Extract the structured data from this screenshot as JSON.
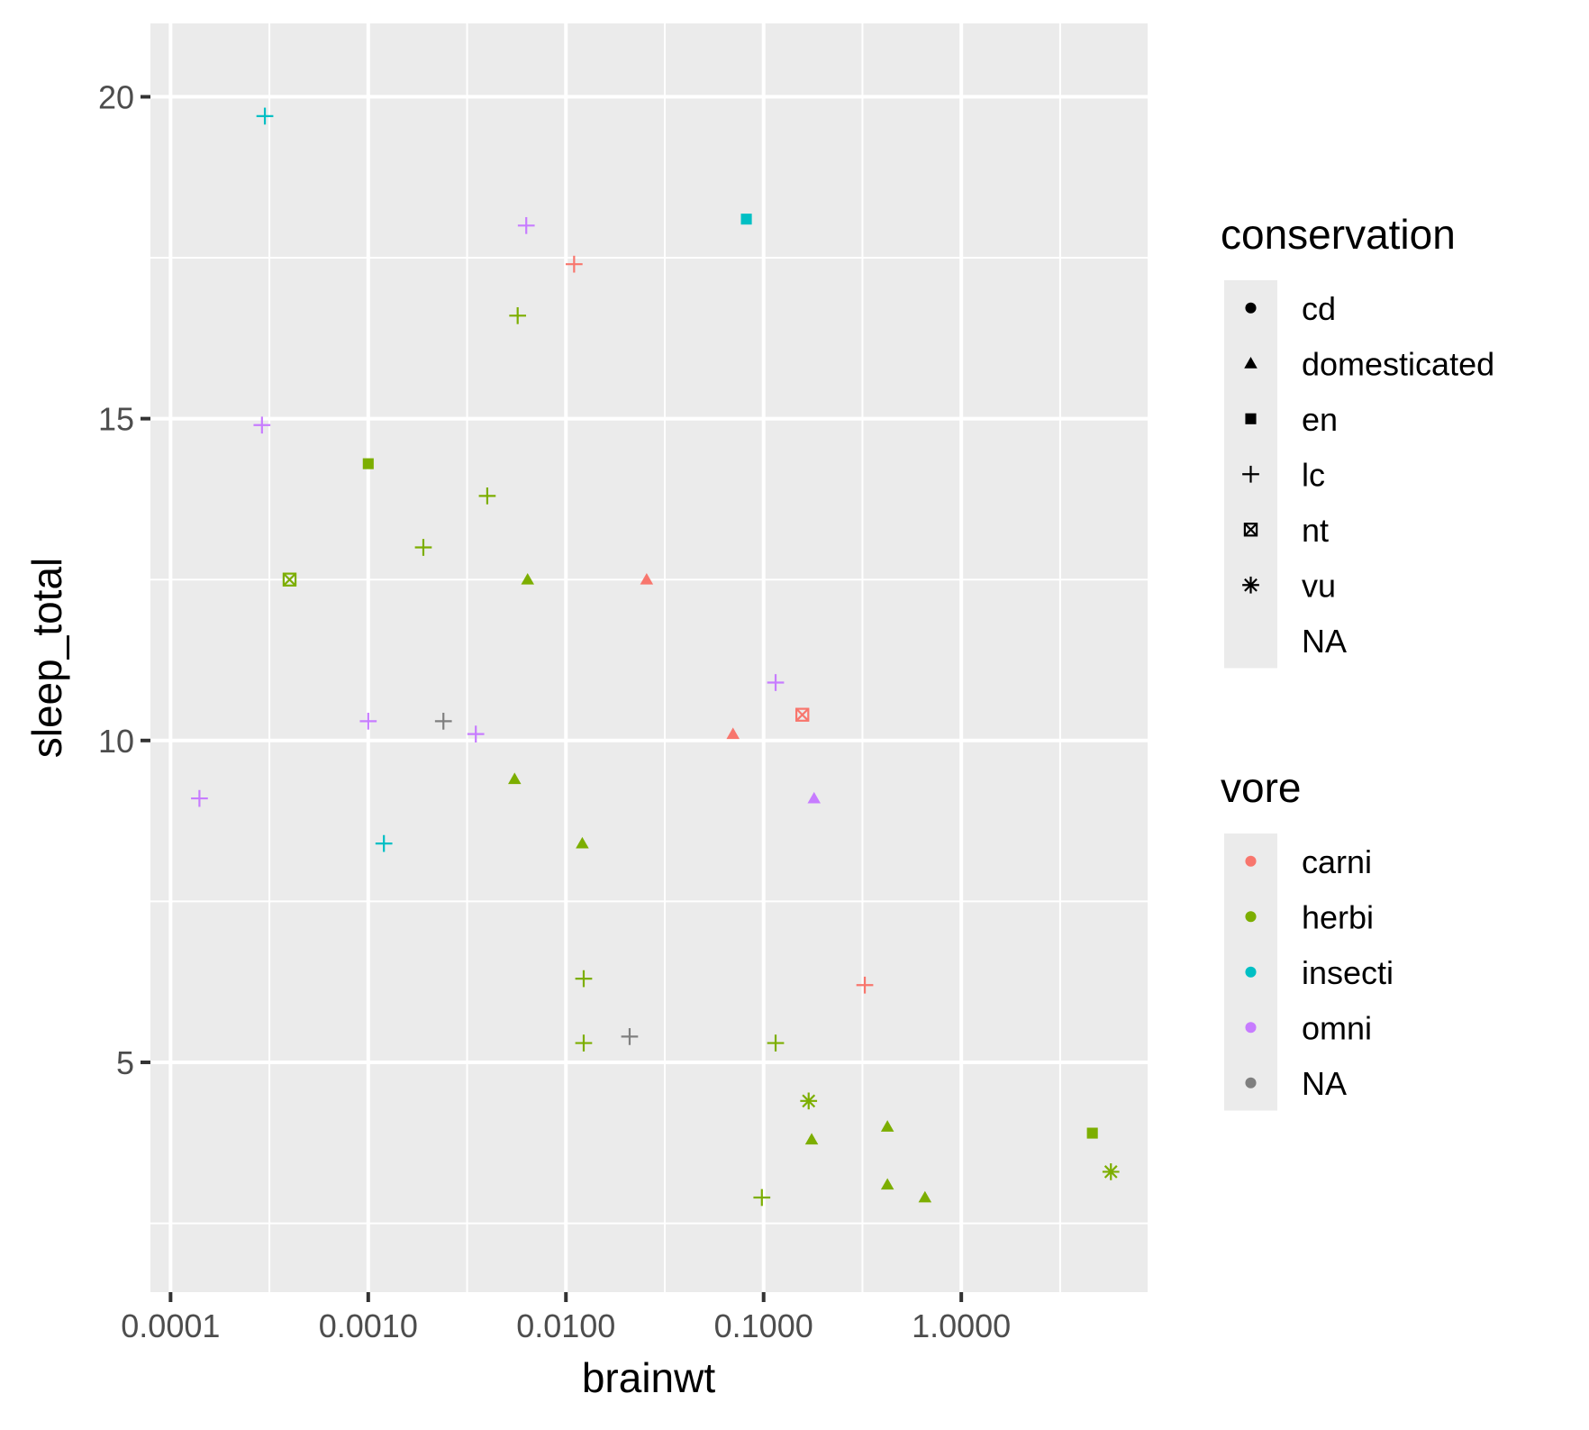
{
  "chart_data": {
    "type": "scatter",
    "title": "",
    "xlabel": "brainwt",
    "ylabel": "sleep_total",
    "x_scale": "log10",
    "xlim": [
      7.91e-05,
      8.76
    ],
    "ylim": [
      1.43,
      21.14
    ],
    "x_ticks": [
      0.0001,
      0.001,
      0.01,
      0.1,
      1
    ],
    "x_tick_labels": [
      "0.0001",
      "0.0010",
      "0.0100",
      "0.1000",
      "1.0000"
    ],
    "y_ticks": [
      5,
      10,
      15,
      20
    ],
    "y_tick_labels": [
      "5",
      "10",
      "15",
      "20"
    ],
    "grid": true,
    "legend_position": "right",
    "colors": {
      "carni": "#F8766D",
      "herbi": "#7CAE00",
      "insecti": "#00BFC4",
      "omni": "#C77CFF",
      "NA": "#7F7F7F"
    },
    "shapes": {
      "cd": "circle",
      "domesticated": "triangle",
      "en": "square",
      "lc": "plus",
      "nt": "square-cross",
      "vu": "asterisk",
      "NA": "none"
    },
    "legends": [
      {
        "title": "conservation",
        "entries": [
          "cd",
          "domesticated",
          "en",
          "lc",
          "nt",
          "vu",
          "NA"
        ]
      },
      {
        "title": "vore",
        "entries": [
          "carni",
          "herbi",
          "insecti",
          "omni",
          "NA"
        ]
      }
    ],
    "points": [
      {
        "x": 0.0003,
        "y": 19.7,
        "vore": "insecti",
        "conservation": "lc"
      },
      {
        "x": 0.0063,
        "y": 18.0,
        "vore": "omni",
        "conservation": "lc"
      },
      {
        "x": 0.0818,
        "y": 18.1,
        "vore": "insecti",
        "conservation": "en"
      },
      {
        "x": 0.011,
        "y": 17.4,
        "vore": "carni",
        "conservation": "lc"
      },
      {
        "x": 0.0057,
        "y": 16.6,
        "vore": "herbi",
        "conservation": "lc"
      },
      {
        "x": 0.00029,
        "y": 14.9,
        "vore": "omni",
        "conservation": "lc"
      },
      {
        "x": 0.001,
        "y": 14.3,
        "vore": "herbi",
        "conservation": "en"
      },
      {
        "x": 0.004,
        "y": 13.8,
        "vore": "herbi",
        "conservation": "lc"
      },
      {
        "x": 0.0019,
        "y": 13.0,
        "vore": "herbi",
        "conservation": "lc"
      },
      {
        "x": 0.0004,
        "y": 12.5,
        "vore": "herbi",
        "conservation": "nt"
      },
      {
        "x": 0.0064,
        "y": 12.5,
        "vore": "herbi",
        "conservation": "domesticated"
      },
      {
        "x": 0.0256,
        "y": 12.5,
        "vore": "carni",
        "conservation": "domesticated"
      },
      {
        "x": 0.115,
        "y": 10.9,
        "vore": "omni",
        "conservation": "lc"
      },
      {
        "x": 0.157,
        "y": 10.4,
        "vore": "carni",
        "conservation": "nt"
      },
      {
        "x": 0.001,
        "y": 10.3,
        "vore": "omni",
        "conservation": "lc"
      },
      {
        "x": 0.0024,
        "y": 10.3,
        "vore": "NA",
        "conservation": "lc"
      },
      {
        "x": 0.0035,
        "y": 10.1,
        "vore": "omni",
        "conservation": "lc"
      },
      {
        "x": 0.07,
        "y": 10.1,
        "vore": "carni",
        "conservation": "domesticated"
      },
      {
        "x": 0.0055,
        "y": 9.4,
        "vore": "herbi",
        "conservation": "domesticated"
      },
      {
        "x": 0.00014,
        "y": 9.1,
        "vore": "omni",
        "conservation": "lc"
      },
      {
        "x": 0.18,
        "y": 9.1,
        "vore": "omni",
        "conservation": "domesticated"
      },
      {
        "x": 0.0012,
        "y": 8.4,
        "vore": "insecti",
        "conservation": "lc"
      },
      {
        "x": 0.0121,
        "y": 8.4,
        "vore": "herbi",
        "conservation": "domesticated"
      },
      {
        "x": 0.0123,
        "y": 6.3,
        "vore": "herbi",
        "conservation": "lc"
      },
      {
        "x": 0.325,
        "y": 6.2,
        "vore": "carni",
        "conservation": "lc"
      },
      {
        "x": 0.021,
        "y": 5.4,
        "vore": "NA",
        "conservation": "lc"
      },
      {
        "x": 0.0123,
        "y": 5.3,
        "vore": "herbi",
        "conservation": "lc"
      },
      {
        "x": 0.115,
        "y": 5.3,
        "vore": "herbi",
        "conservation": "lc"
      },
      {
        "x": 0.169,
        "y": 4.4,
        "vore": "herbi",
        "conservation": "vu"
      },
      {
        "x": 0.423,
        "y": 4.0,
        "vore": "herbi",
        "conservation": "domesticated"
      },
      {
        "x": 4.603,
        "y": 3.9,
        "vore": "herbi",
        "conservation": "en"
      },
      {
        "x": 0.175,
        "y": 3.8,
        "vore": "herbi",
        "conservation": "domesticated"
      },
      {
        "x": 5.712,
        "y": 3.3,
        "vore": "herbi",
        "conservation": "vu"
      },
      {
        "x": 0.423,
        "y": 3.1,
        "vore": "herbi",
        "conservation": "domesticated"
      },
      {
        "x": 0.098,
        "y": 2.9,
        "vore": "herbi",
        "conservation": "lc"
      },
      {
        "x": 0.655,
        "y": 2.9,
        "vore": "herbi",
        "conservation": "domesticated"
      }
    ]
  }
}
